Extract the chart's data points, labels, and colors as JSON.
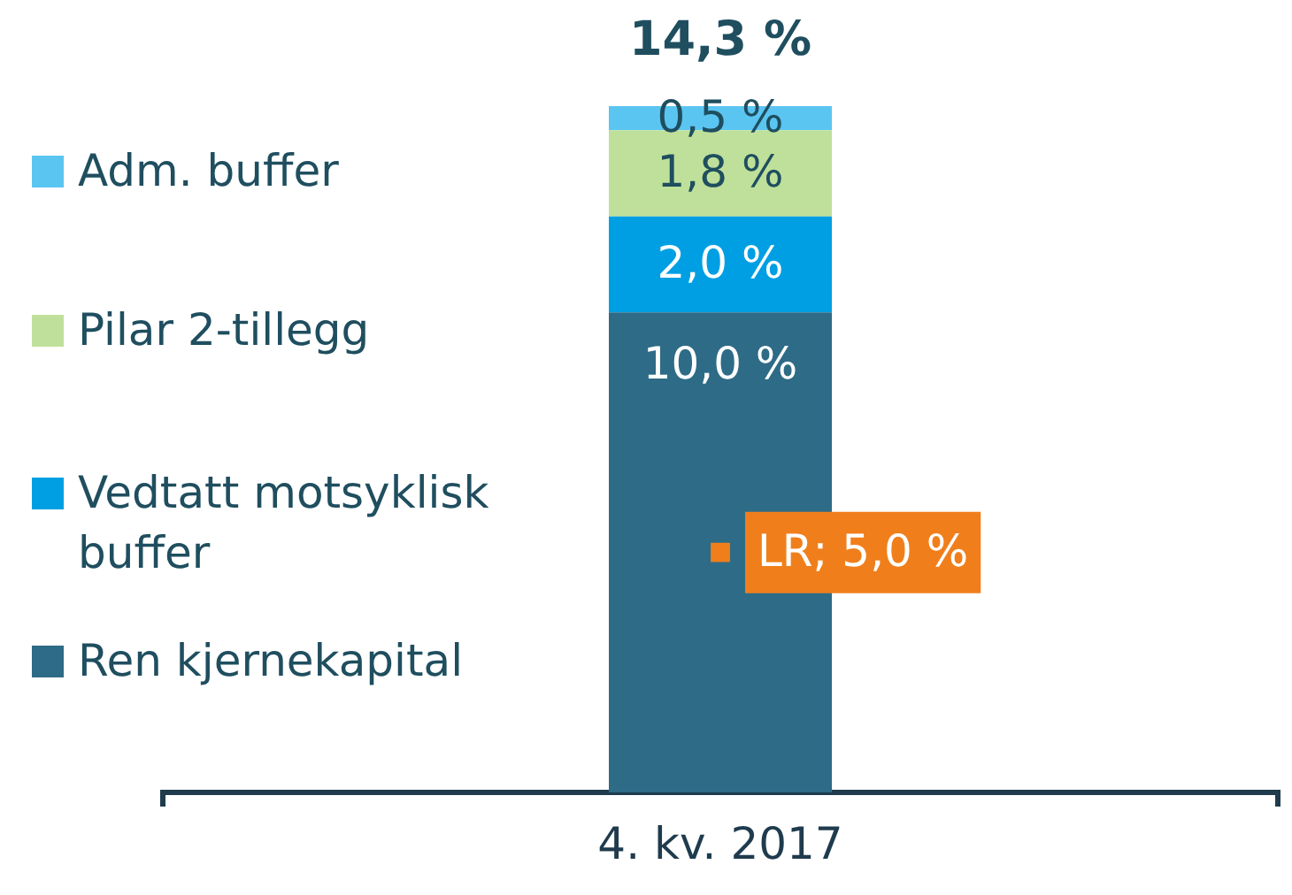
{
  "chart_data": {
    "type": "bar",
    "stacked": true,
    "categories": [
      "4. kv. 2017"
    ],
    "series": [
      {
        "name": "Ren kjernekapital",
        "color": "#2e6b87",
        "values": [
          10.0
        ],
        "value_labels": [
          "10,0 %"
        ]
      },
      {
        "name": "Vedtatt motsyklisk buffer",
        "color": "#009fe3",
        "values": [
          2.0
        ],
        "value_labels": [
          "2,0 %"
        ]
      },
      {
        "name": "Pilar 2-tillegg",
        "color": "#bfe09a",
        "values": [
          1.8
        ],
        "value_labels": [
          "1,8 %"
        ]
      },
      {
        "name": "Adm. buffer",
        "color": "#5bc5f2",
        "values": [
          0.5
        ],
        "value_labels": [
          "0,5 %"
        ]
      },
      {
        "type": "scatter",
        "color": "#f07f1b",
        "values": [
          5.0
        ],
        "value_labels": [
          "LR; 5,0 %"
        ]
      }
    ],
    "totals": [
      "14,3 %"
    ],
    "grid": false,
    "legend": "left",
    "marker": "square",
    "tick_labels": "x"
  }
}
